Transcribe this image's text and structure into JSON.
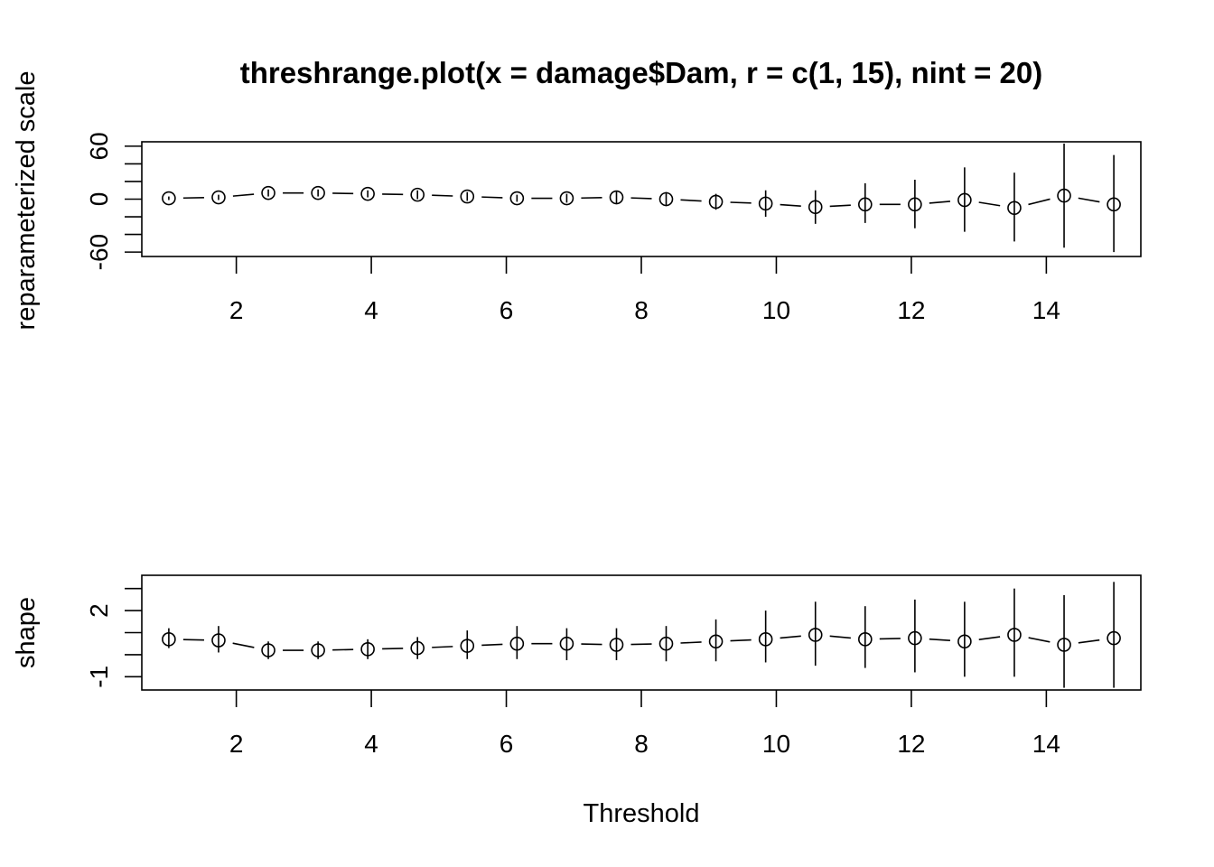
{
  "chart_data": [
    {
      "type": "scatter",
      "title": "threshrange.plot(x = damage$Dam, r = c(1, 15), nint = 20)",
      "xlabel": "",
      "ylabel": "reparameterized scale",
      "xlim": [
        0.6,
        15.4
      ],
      "ylim": [
        -65,
        65
      ],
      "xticks": [
        2,
        4,
        6,
        8,
        10,
        12,
        14
      ],
      "yticks": [
        -60,
        0,
        60
      ],
      "yminor": [
        -40,
        -20,
        20,
        40
      ],
      "grid": false,
      "legend": "none",
      "series": [
        {
          "x": [
            1.0,
            1.737,
            2.474,
            3.211,
            3.947,
            4.684,
            5.421,
            6.158,
            6.895,
            7.632,
            8.368,
            9.105,
            9.842,
            10.579,
            11.316,
            12.053,
            12.789,
            13.526,
            14.263,
            15.0
          ],
          "y": [
            1,
            2,
            7,
            7,
            6,
            5,
            3,
            1,
            1,
            2,
            0,
            -3,
            -5,
            -9,
            -6,
            -6,
            -1,
            -10,
            4,
            -6
          ],
          "lower": [
            -1,
            -1,
            3,
            3,
            2,
            0,
            -2,
            -3,
            -4,
            -5,
            -8,
            -12,
            -20,
            -28,
            -27,
            -33,
            -37,
            -48,
            -55,
            -60
          ],
          "upper": [
            3,
            5,
            11,
            11,
            10,
            10,
            8,
            5,
            6,
            9,
            8,
            6,
            10,
            10,
            18,
            22,
            36,
            30,
            63,
            50
          ]
        }
      ]
    },
    {
      "type": "scatter",
      "title": "",
      "xlabel": "Threshold",
      "ylabel": "shape",
      "xlim": [
        0.6,
        15.4
      ],
      "ylim": [
        -1.6,
        3.6
      ],
      "xticks": [
        2,
        4,
        6,
        8,
        10,
        12,
        14
      ],
      "yticks": [
        -1,
        2
      ],
      "yminor": [
        0,
        1,
        3
      ],
      "grid": false,
      "legend": "none",
      "series": [
        {
          "x": [
            1.0,
            1.737,
            2.474,
            3.211,
            3.947,
            4.684,
            5.421,
            6.158,
            6.895,
            7.632,
            8.368,
            9.105,
            9.842,
            10.579,
            11.316,
            12.053,
            12.789,
            13.526,
            14.263,
            15.0
          ],
          "y": [
            0.7,
            0.65,
            0.2,
            0.2,
            0.25,
            0.3,
            0.4,
            0.5,
            0.5,
            0.45,
            0.5,
            0.6,
            0.7,
            0.9,
            0.7,
            0.75,
            0.6,
            0.9,
            0.45,
            0.75
          ],
          "lower": [
            0.3,
            0.1,
            -0.2,
            -0.2,
            -0.2,
            -0.2,
            -0.2,
            -0.2,
            -0.25,
            -0.25,
            -0.3,
            -0.3,
            -0.35,
            -0.5,
            -0.6,
            -0.8,
            -1.0,
            -1.0,
            -1.5,
            -1.5
          ],
          "upper": [
            1.2,
            1.3,
            0.6,
            0.6,
            0.7,
            0.8,
            1.1,
            1.3,
            1.2,
            1.2,
            1.3,
            1.6,
            2.0,
            2.4,
            2.2,
            2.5,
            2.4,
            3.0,
            2.7,
            3.3
          ]
        }
      ]
    }
  ]
}
